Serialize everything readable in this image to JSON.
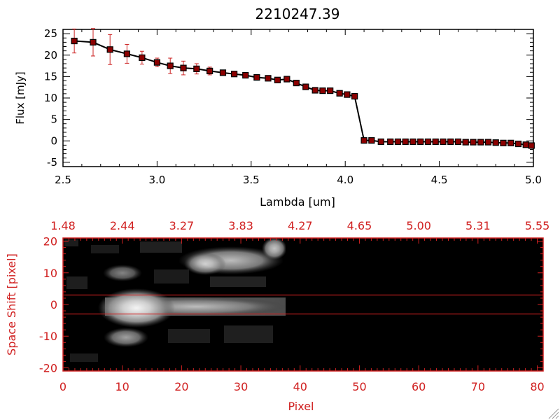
{
  "chart_data": [
    {
      "type": "line",
      "title": "2210247.39",
      "xlabel": "Lambda [um]",
      "ylabel": "Flux [mJy]",
      "xlim": [
        2.5,
        5.0
      ],
      "ylim": [
        -6,
        26
      ],
      "xticks": [
        "2.5",
        "3.0",
        "3.5",
        "4.0",
        "4.5",
        "5.0"
      ],
      "yticks": [
        "-5",
        "0",
        "5",
        "10",
        "15",
        "20",
        "25"
      ],
      "grid": false,
      "line_color": "#000000",
      "marker_color": "#8b0000",
      "errorbar_color": "#cc2222",
      "series": [
        {
          "x": [
            2.56,
            2.66,
            2.75,
            2.84,
            2.92,
            3.0,
            3.07,
            3.14,
            3.21,
            3.28,
            3.35,
            3.41,
            3.47,
            3.53,
            3.59,
            3.64,
            3.69,
            3.74,
            3.79,
            3.84,
            3.88,
            3.92,
            3.97,
            4.01,
            4.05,
            4.1,
            4.14,
            4.19,
            4.24,
            4.28,
            4.32,
            4.36,
            4.4,
            4.44,
            4.48,
            4.52,
            4.56,
            4.6,
            4.64,
            4.68,
            4.72,
            4.76,
            4.8,
            4.84,
            4.88,
            4.92,
            4.96,
            4.99
          ],
          "y": [
            23.3,
            23.0,
            21.3,
            20.3,
            19.4,
            18.3,
            17.5,
            17.0,
            16.8,
            16.3,
            15.9,
            15.6,
            15.3,
            14.8,
            14.6,
            14.2,
            14.4,
            13.5,
            12.6,
            11.8,
            11.7,
            11.7,
            11.1,
            10.8,
            10.4,
            0.1,
            0.1,
            -0.2,
            -0.2,
            -0.2,
            -0.2,
            -0.2,
            -0.2,
            -0.2,
            -0.2,
            -0.2,
            -0.2,
            -0.2,
            -0.3,
            -0.3,
            -0.3,
            -0.3,
            -0.4,
            -0.5,
            -0.5,
            -0.7,
            -0.9,
            -1.1
          ],
          "yerr": [
            2.8,
            3.2,
            3.5,
            2.2,
            1.5,
            1.0,
            1.8,
            1.6,
            1.2,
            0.9,
            0.6,
            0.5,
            0.5,
            0.5,
            0.5,
            0.5,
            0.6,
            0.5,
            0.5,
            0.5,
            0.4,
            0.4,
            0.4,
            0.4,
            0.4,
            0.3,
            0.3,
            0.2,
            0.2,
            0.2,
            0.2,
            0.2,
            0.2,
            0.2,
            0.2,
            0.2,
            0.2,
            0.2,
            0.2,
            0.2,
            0.2,
            0.2,
            0.2,
            0.2,
            0.2,
            0.2,
            0.3,
            0.3
          ]
        }
      ]
    },
    {
      "type": "heatmap",
      "xlabel": "Pixel",
      "ylabel": "Space Shift [pixel]",
      "top_axis_label": "",
      "xlim": [
        0,
        81
      ],
      "ylim": [
        -21,
        21
      ],
      "xticks": [
        "0",
        "10",
        "20",
        "30",
        "40",
        "50",
        "60",
        "70",
        "80"
      ],
      "yticks": [
        "-20",
        "-10",
        "0",
        "10",
        "20"
      ],
      "top_ticks": [
        "1.48",
        "2.44",
        "3.27",
        "3.83",
        "4.27",
        "4.65",
        "5.00",
        "5.31",
        "5.55"
      ],
      "axis_color": "#d02020",
      "aperture_lines": [
        3,
        -3
      ],
      "signal_extent_pixels": [
        0,
        38
      ],
      "colormap": "grayscale"
    }
  ]
}
